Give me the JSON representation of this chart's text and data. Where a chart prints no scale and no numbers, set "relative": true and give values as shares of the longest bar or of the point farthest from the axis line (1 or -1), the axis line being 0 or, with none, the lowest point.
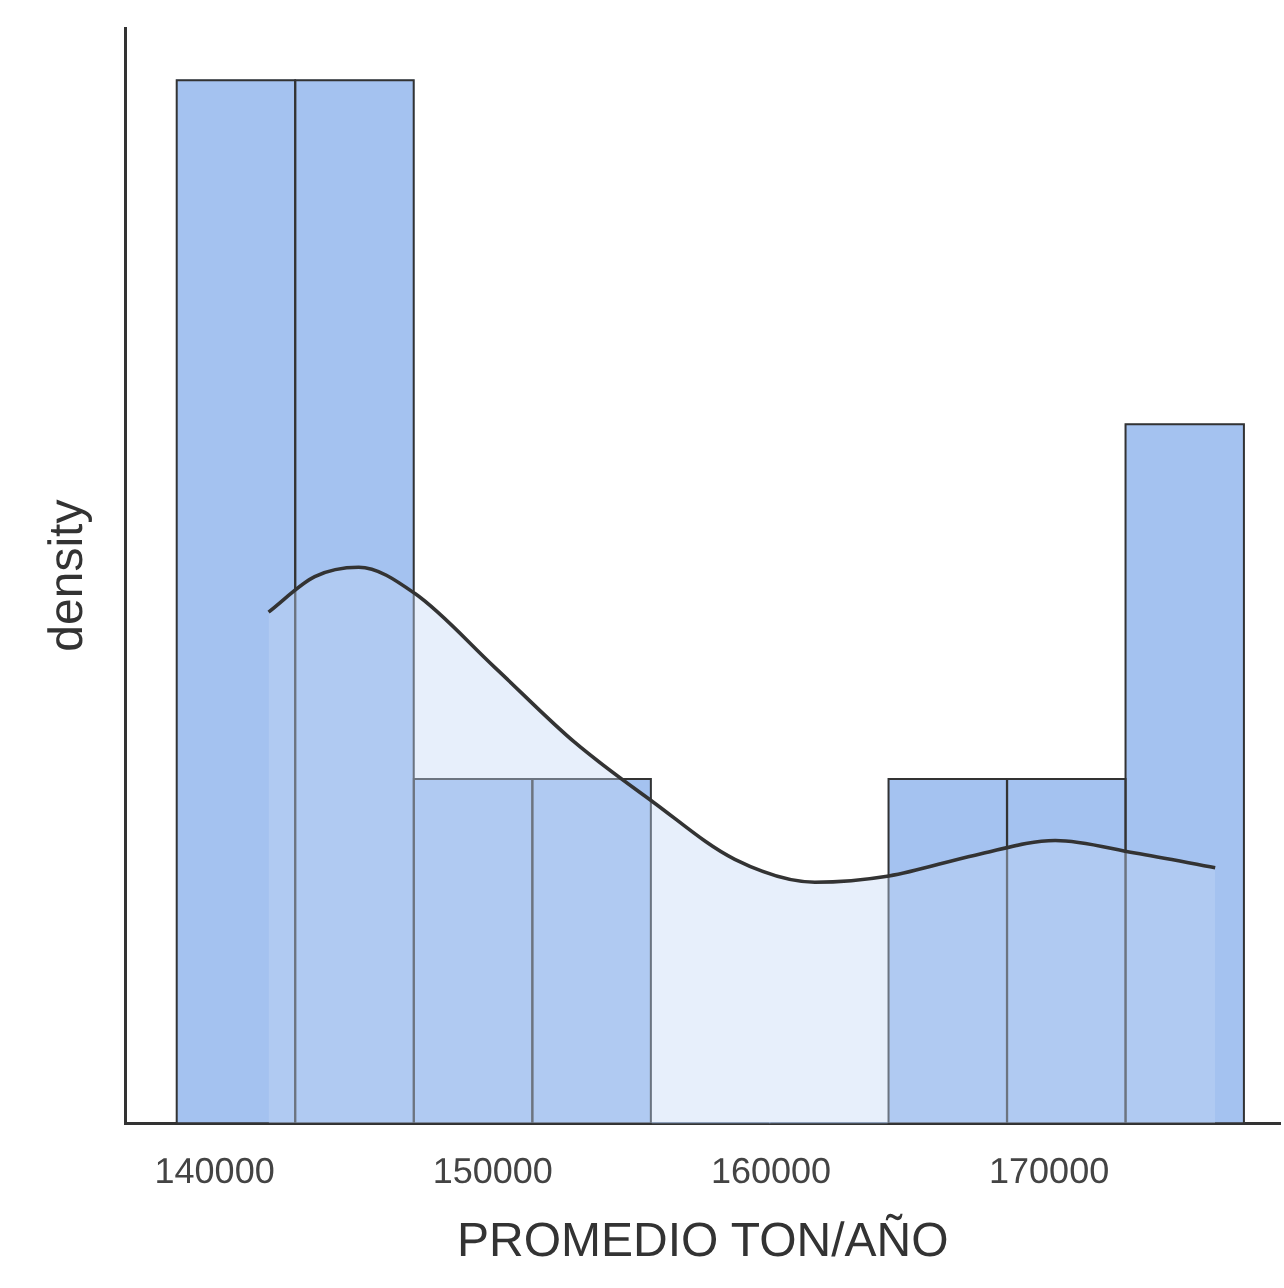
{
  "chart_data": {
    "type": "histogram",
    "xlabel": "PROMEDIO TON/AÑO",
    "ylabel": "density",
    "relative": true,
    "bins": [
      138630,
      142900,
      147160,
      151420,
      155690,
      159960,
      164220,
      168490,
      172750,
      177000
    ],
    "values": [
      1,
      1,
      0.33,
      0.33,
      0,
      0,
      0.33,
      0.33,
      0.67
    ],
    "color": "#a4c2f0",
    "series": [
      {
        "type": "area",
        "color": "#c4d7f5",
        "x": [
          141940,
          143600,
          145180,
          147190,
          150070,
          152950,
          155760,
          158700,
          161580,
          164240,
          167340,
          170220,
          173090,
          175970
        ],
        "values": [
          0.49,
          0.524,
          0.533,
          0.508,
          0.437,
          0.365,
          0.308,
          0.253,
          0.231,
          0.237,
          0.257,
          0.271,
          0.259,
          0.245
        ]
      }
    ],
    "xlim": [
      136800,
      178300
    ],
    "xticks": [
      140000,
      150000,
      160000,
      170000
    ],
    "grid": false,
    "legend": false
  }
}
